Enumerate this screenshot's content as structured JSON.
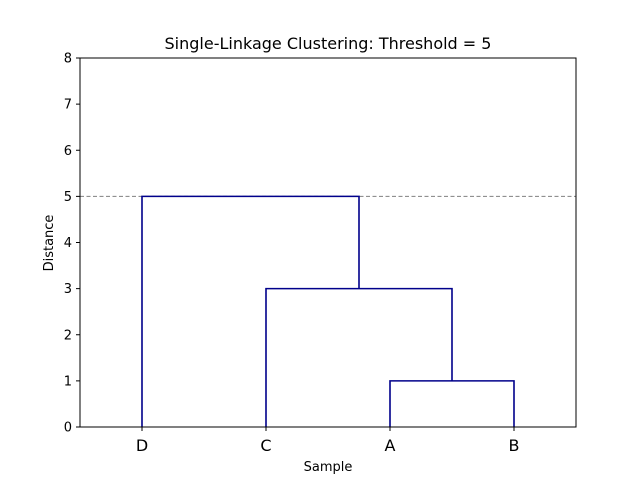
{
  "chart_data": {
    "type": "dendrogram",
    "title": "Single-Linkage Clustering: Threshold = 5",
    "xlabel": "Sample",
    "ylabel": "Distance",
    "ylim": [
      0,
      8
    ],
    "yticks": [
      "0",
      "1",
      "2",
      "3",
      "4",
      "5",
      "6",
      "7",
      "8"
    ],
    "leaves": [
      "D",
      "C",
      "A",
      "B"
    ],
    "merges": [
      {
        "left": "A",
        "right": "B",
        "height": 1
      },
      {
        "left": "C",
        "right": "A+B",
        "height": 3
      },
      {
        "left": "D",
        "right": "C+A+B",
        "height": 5
      }
    ],
    "threshold": 5,
    "link_color": "#00008b",
    "threshold_color": "#808080",
    "grid": false
  }
}
